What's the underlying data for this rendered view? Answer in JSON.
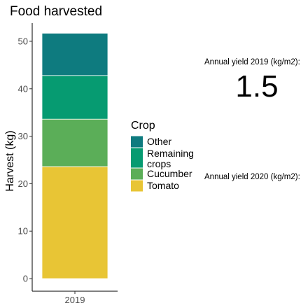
{
  "chart_data": {
    "type": "bar",
    "stacked": true,
    "title": "Food harvested",
    "ylabel": "Harvest (kg)",
    "xlabel": "",
    "categories": [
      "2019"
    ],
    "ylim": [
      0,
      52
    ],
    "yticks": [
      0,
      10,
      20,
      30,
      40,
      50
    ],
    "grid": false,
    "legend_title": "Crop",
    "legend_position": "right",
    "series": [
      {
        "name": "Tomato",
        "values": [
          23.6
        ],
        "color": "#E8C535"
      },
      {
        "name": "Cucumber",
        "values": [
          10.0
        ],
        "color": "#5BAE58"
      },
      {
        "name": "Remaining crops",
        "values": [
          9.2
        ],
        "color": "#069B71"
      },
      {
        "name": "Other",
        "values": [
          8.9
        ],
        "color": "#0E7B7F"
      }
    ],
    "legend_order": [
      "Other",
      "Remaining crops",
      "Cucumber",
      "Tomato"
    ]
  },
  "annotations": {
    "yield_2019_label": "Annual yield 2019 (kg/m2):",
    "yield_2019_value": "1.5",
    "yield_2020_label": "Annual yield 2020 (kg/m2):"
  }
}
